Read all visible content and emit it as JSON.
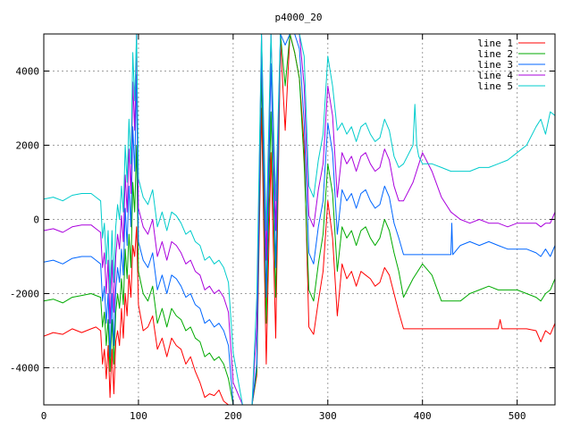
{
  "chart_data": {
    "type": "line",
    "title": "p4000_20",
    "xlim": [
      0,
      540
    ],
    "ylim": [
      -5000,
      5000
    ],
    "xticks": [
      0,
      100,
      200,
      300,
      400,
      500
    ],
    "yticks": [
      -4000,
      -2000,
      0,
      2000,
      4000
    ],
    "grid": true,
    "legend_position": "top-right",
    "series": [
      {
        "name": "line 1",
        "color": "#ff0000",
        "x": [
          0,
          10,
          20,
          30,
          40,
          50,
          55,
          60,
          62,
          64,
          66,
          68,
          70,
          72,
          74,
          76,
          78,
          80,
          82,
          84,
          86,
          88,
          90,
          92,
          94,
          96,
          98,
          100,
          105,
          110,
          115,
          120,
          125,
          130,
          135,
          140,
          145,
          150,
          155,
          160,
          165,
          170,
          175,
          180,
          185,
          190,
          195,
          200,
          210,
          220,
          225,
          230,
          235,
          240,
          245,
          250,
          255,
          260,
          265,
          270,
          275,
          280,
          285,
          290,
          295,
          300,
          305,
          310,
          315,
          320,
          325,
          330,
          335,
          340,
          345,
          350,
          355,
          360,
          365,
          370,
          375,
          380,
          390,
          400,
          410,
          420,
          430,
          440,
          450,
          460,
          470,
          480,
          482,
          484,
          490,
          500,
          510,
          520,
          525,
          530,
          535,
          540
        ],
        "y": [
          -3150,
          -3050,
          -3100,
          -2950,
          -3050,
          -2950,
          -2900,
          -3000,
          -3900,
          -3500,
          -4300,
          -3400,
          -4800,
          -3500,
          -4700,
          -3300,
          -3000,
          -3400,
          -2400,
          -3200,
          -2000,
          -2600,
          -1500,
          -2100,
          -700,
          -1000,
          -200,
          -2300,
          -3000,
          -2900,
          -2600,
          -3500,
          -3200,
          -3700,
          -3200,
          -3400,
          -3500,
          -3900,
          -3700,
          -4100,
          -4400,
          -4800,
          -4700,
          -4750,
          -4600,
          -4900,
          -5000,
          -5000,
          -5000,
          -5000,
          -4200,
          3000,
          -3900,
          1800,
          -3200,
          4800,
          2400,
          5000,
          4500,
          3800,
          2000,
          -2900,
          -3100,
          -2200,
          -1400,
          500,
          -500,
          -2600,
          -1200,
          -1600,
          -1400,
          -1800,
          -1400,
          -1500,
          -1600,
          -1800,
          -1700,
          -1300,
          -1500,
          -2000,
          -2500,
          -2950,
          -2950,
          -2950,
          -2950,
          -2950,
          -2950,
          -2950,
          -2950,
          -2950,
          -2950,
          -2950,
          -2700,
          -2950,
          -2950,
          -2950,
          -2950,
          -3000,
          -3300,
          -3000,
          -3100,
          -2800
        ]
      },
      {
        "name": "line 2",
        "color": "#00aa00",
        "x": [
          0,
          10,
          20,
          30,
          40,
          50,
          55,
          60,
          62,
          64,
          66,
          68,
          70,
          72,
          74,
          76,
          78,
          80,
          82,
          84,
          86,
          88,
          90,
          92,
          94,
          96,
          98,
          100,
          105,
          110,
          115,
          120,
          125,
          130,
          135,
          140,
          145,
          150,
          155,
          160,
          165,
          170,
          175,
          180,
          185,
          190,
          195,
          200,
          210,
          220,
          225,
          230,
          235,
          240,
          245,
          250,
          255,
          260,
          265,
          270,
          275,
          280,
          285,
          290,
          295,
          300,
          305,
          310,
          315,
          320,
          325,
          330,
          335,
          340,
          345,
          350,
          355,
          360,
          365,
          370,
          375,
          380,
          390,
          400,
          410,
          420,
          430,
          440,
          450,
          460,
          470,
          480,
          490,
          500,
          510,
          520,
          525,
          530,
          535,
          540
        ],
        "y": [
          -2200,
          -2150,
          -2250,
          -2100,
          -2050,
          -2000,
          -2050,
          -2100,
          -2900,
          -2500,
          -3400,
          -2700,
          -4100,
          -2700,
          -3900,
          -2500,
          -2000,
          -2400,
          -1600,
          -2300,
          -800,
          -1600,
          -400,
          -1300,
          1000,
          200,
          2000,
          -1400,
          -2000,
          -2200,
          -1800,
          -2800,
          -2400,
          -2900,
          -2400,
          -2600,
          -2700,
          -3000,
          -2900,
          -3200,
          -3300,
          -3700,
          -3600,
          -3800,
          -3700,
          -3900,
          -4300,
          -5000,
          -5000,
          -5000,
          -4100,
          3900,
          -2800,
          2900,
          -2100,
          5000,
          3600,
          5000,
          4500,
          3800,
          1500,
          -1900,
          -2200,
          -1200,
          -400,
          1500,
          700,
          -1400,
          -200,
          -500,
          -300,
          -700,
          -300,
          -200,
          -500,
          -700,
          -500,
          0,
          -300,
          -900,
          -1400,
          -2100,
          -1600,
          -1200,
          -1500,
          -2200,
          -2200,
          -2200,
          -2000,
          -1900,
          -1800,
          -1900,
          -1900,
          -1900,
          -2000,
          -2100,
          -2200,
          -2000,
          -1900,
          -1600
        ]
      },
      {
        "name": "line 3",
        "color": "#0066ff",
        "x": [
          0,
          10,
          20,
          30,
          40,
          50,
          55,
          60,
          62,
          64,
          66,
          68,
          70,
          72,
          74,
          76,
          78,
          80,
          82,
          84,
          86,
          88,
          90,
          92,
          94,
          96,
          98,
          100,
          105,
          110,
          115,
          120,
          125,
          130,
          135,
          140,
          145,
          150,
          155,
          160,
          165,
          170,
          175,
          180,
          185,
          190,
          195,
          200,
          210,
          220,
          225,
          230,
          235,
          240,
          245,
          250,
          255,
          260,
          265,
          270,
          275,
          280,
          285,
          290,
          295,
          300,
          305,
          310,
          315,
          320,
          325,
          330,
          335,
          340,
          345,
          350,
          355,
          360,
          365,
          370,
          375,
          380,
          390,
          400,
          410,
          420,
          430,
          431,
          432,
          440,
          450,
          460,
          470,
          480,
          490,
          500,
          510,
          520,
          525,
          530,
          535,
          540
        ],
        "y": [
          -1150,
          -1100,
          -1200,
          -1050,
          -1000,
          -1000,
          -1100,
          -1200,
          -2200,
          -1800,
          -2800,
          -2000,
          -3700,
          -2000,
          -3400,
          -1900,
          -1300,
          -1700,
          -800,
          -1500,
          300,
          -700,
          900,
          -200,
          2500,
          1300,
          3900,
          -600,
          -1100,
          -1300,
          -900,
          -1900,
          -1500,
          -2000,
          -1500,
          -1600,
          -1800,
          -2100,
          -2000,
          -2300,
          -2400,
          -2800,
          -2700,
          -2900,
          -2800,
          -3000,
          -3400,
          -5000,
          -5000,
          -5000,
          -3900,
          4600,
          -2100,
          4200,
          -1300,
          5000,
          4700,
          5000,
          5000,
          4600,
          2600,
          -900,
          -1200,
          -200,
          500,
          2600,
          1800,
          -400,
          800,
          500,
          700,
          300,
          700,
          800,
          500,
          300,
          400,
          900,
          600,
          -100,
          -500,
          -950,
          -950,
          -950,
          -950,
          -950,
          -950,
          -100,
          -950,
          -700,
          -600,
          -700,
          -600,
          -700,
          -800,
          -800,
          -800,
          -900,
          -1000,
          -800,
          -1000,
          -700
        ]
      },
      {
        "name": "line 4",
        "color": "#aa00dd",
        "x": [
          0,
          10,
          20,
          30,
          40,
          50,
          55,
          60,
          62,
          64,
          66,
          68,
          70,
          72,
          74,
          76,
          78,
          80,
          82,
          84,
          86,
          88,
          90,
          92,
          94,
          96,
          98,
          100,
          105,
          110,
          115,
          120,
          125,
          130,
          135,
          140,
          145,
          150,
          155,
          160,
          165,
          170,
          175,
          180,
          185,
          190,
          195,
          200,
          210,
          220,
          225,
          230,
          235,
          240,
          245,
          250,
          255,
          260,
          265,
          270,
          275,
          280,
          285,
          290,
          295,
          300,
          305,
          310,
          315,
          320,
          325,
          330,
          335,
          340,
          345,
          350,
          355,
          360,
          365,
          370,
          375,
          380,
          390,
          400,
          410,
          420,
          430,
          440,
          450,
          460,
          470,
          480,
          490,
          500,
          510,
          520,
          525,
          530,
          535,
          540
        ],
        "y": [
          -300,
          -250,
          -350,
          -200,
          -150,
          -150,
          -250,
          -350,
          -1300,
          -900,
          -2000,
          -1100,
          -2800,
          -1100,
          -2500,
          -1000,
          -400,
          -800,
          100,
          -600,
          1200,
          200,
          1900,
          700,
          3700,
          2400,
          5000,
          300,
          -200,
          -400,
          0,
          -1000,
          -600,
          -1100,
          -600,
          -700,
          -900,
          -1200,
          -1100,
          -1400,
          -1500,
          -1900,
          -1800,
          -2000,
          -1900,
          -2100,
          -2500,
          -4400,
          -5000,
          -5000,
          -2900,
          5000,
          -1100,
          5000,
          -300,
          5000,
          5000,
          5000,
          5000,
          5000,
          3600,
          100,
          -200,
          800,
          1500,
          3600,
          2800,
          600,
          1800,
          1500,
          1700,
          1300,
          1700,
          1800,
          1500,
          1300,
          1400,
          1900,
          1600,
          900,
          500,
          500,
          1000,
          1800,
          1300,
          600,
          200,
          0,
          -100,
          0,
          -100,
          -100,
          -200,
          -100,
          -100,
          -100,
          -200,
          -100,
          -100,
          200
        ]
      },
      {
        "name": "line 5",
        "color": "#00cccc",
        "x": [
          0,
          10,
          20,
          30,
          40,
          50,
          55,
          60,
          62,
          64,
          66,
          68,
          70,
          72,
          74,
          76,
          78,
          80,
          82,
          84,
          86,
          88,
          90,
          92,
          94,
          96,
          98,
          100,
          105,
          110,
          115,
          120,
          125,
          130,
          135,
          140,
          145,
          150,
          155,
          160,
          165,
          170,
          175,
          180,
          185,
          190,
          195,
          200,
          210,
          220,
          225,
          230,
          235,
          240,
          245,
          250,
          255,
          260,
          265,
          270,
          275,
          280,
          285,
          290,
          295,
          300,
          305,
          310,
          315,
          320,
          325,
          330,
          335,
          340,
          345,
          350,
          355,
          360,
          365,
          370,
          375,
          380,
          390,
          392,
          394,
          396,
          400,
          410,
          420,
          430,
          440,
          450,
          460,
          470,
          480,
          490,
          500,
          510,
          520,
          525,
          530,
          535,
          540
        ],
        "y": [
          550,
          600,
          500,
          650,
          700,
          700,
          600,
          500,
          -500,
          -100,
          -1200,
          -300,
          -2000,
          -300,
          -1700,
          -200,
          400,
          0,
          900,
          200,
          2000,
          1000,
          2700,
          1500,
          4500,
          3200,
          5000,
          1100,
          600,
          400,
          800,
          -200,
          200,
          -300,
          200,
          100,
          -100,
          -400,
          -300,
          -600,
          -700,
          -1100,
          -1000,
          -1200,
          -1100,
          -1300,
          -1700,
          -3600,
          -5000,
          -5000,
          -2100,
          5000,
          -300,
          5000,
          500,
          5000,
          5000,
          5000,
          5000,
          5000,
          4400,
          900,
          600,
          1600,
          2300,
          4400,
          3600,
          2400,
          2600,
          2300,
          2500,
          2100,
          2500,
          2600,
          2300,
          2100,
          2200,
          2700,
          2400,
          1700,
          1400,
          1500,
          2000,
          3100,
          2000,
          1700,
          1500,
          1500,
          1400,
          1300,
          1300,
          1300,
          1400,
          1400,
          1500,
          1600,
          1800,
          2000,
          2500,
          2700,
          2300,
          2900,
          2800
        ]
      }
    ]
  }
}
